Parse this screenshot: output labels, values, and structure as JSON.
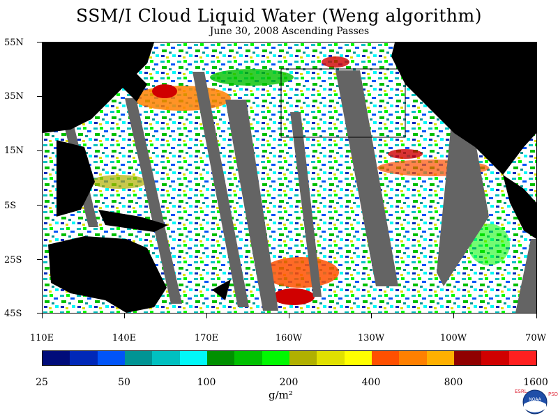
{
  "title": "SSM/I Cloud Liquid Water (Weng algorithm)",
  "subtitle": "June 30, 2008  Ascending Passes",
  "lat_labels": [
    "55N",
    "35N",
    "15N",
    "5S",
    "25S",
    "45S"
  ],
  "lon_labels": [
    "110E",
    "140E",
    "170E",
    "160W",
    "130W",
    "100W",
    "70W"
  ],
  "colorbar": {
    "colors": [
      "#000c7a",
      "#0028b8",
      "#0054f8",
      "#009494",
      "#00c0c0",
      "#00f8f8",
      "#009000",
      "#00c000",
      "#00f800",
      "#b0b000",
      "#e0e000",
      "#ffff00",
      "#ff5000",
      "#ff8000",
      "#ffb000",
      "#900000",
      "#d00000",
      "#ff2020"
    ],
    "tick_labels": [
      "25",
      "50",
      "100",
      "200",
      "400",
      "800",
      "1600"
    ],
    "unit": "g/m²"
  },
  "logo": {
    "left_letters": "ESRL",
    "right_letters": "PSD",
    "badge_text": "NOAA"
  },
  "palette": {
    "land": "#000000",
    "no_data_gap": "#646464",
    "clear": "#ffffff"
  }
}
